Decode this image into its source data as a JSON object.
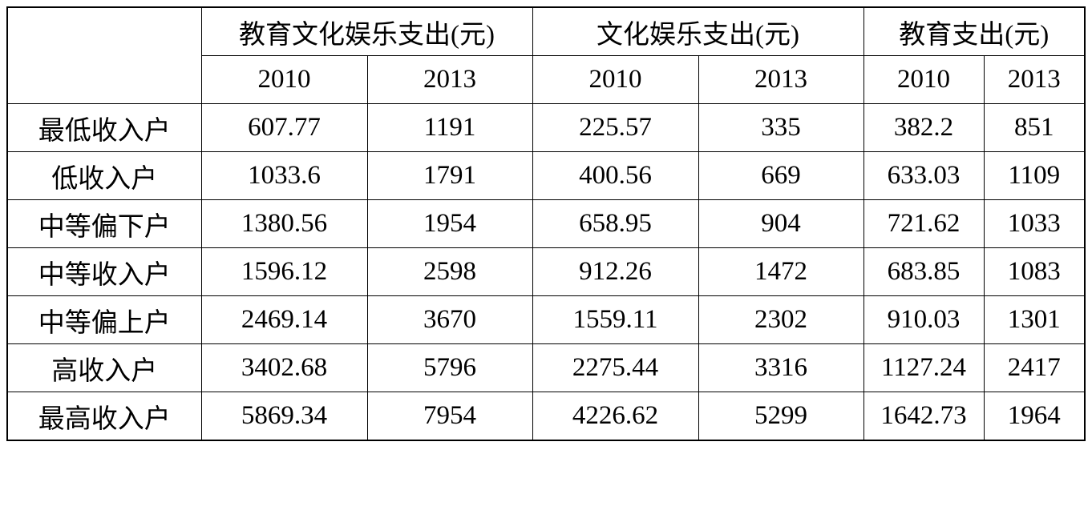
{
  "header": {
    "corner": "",
    "groups": [
      "教育文化娱乐支出(元)",
      "文化娱乐支出(元)",
      "教育支出(元)"
    ],
    "years": [
      2010,
      2013,
      2010,
      2013,
      2010,
      2013
    ]
  },
  "table": {
    "rows": [
      {
        "label": "最低收入户",
        "cells": [
          607.77,
          1191,
          225.57,
          335,
          382.2,
          851
        ]
      },
      {
        "label": "低收入户",
        "cells": [
          1033.6,
          1791,
          400.56,
          669,
          633.03,
          1109
        ]
      },
      {
        "label": "中等偏下户",
        "cells": [
          1380.56,
          1954,
          658.95,
          904,
          721.62,
          1033
        ]
      },
      {
        "label": "中等收入户",
        "cells": [
          1596.12,
          2598,
          912.26,
          1472,
          683.85,
          1083
        ]
      },
      {
        "label": "中等偏上户",
        "cells": [
          2469.14,
          3670,
          1559.11,
          2302,
          910.03,
          1301
        ]
      },
      {
        "label": "高收入户",
        "cells": [
          3402.68,
          5796,
          2275.44,
          3316,
          1127.24,
          2417
        ]
      },
      {
        "label": "最高收入户",
        "cells": [
          5869.34,
          7954,
          4226.62,
          5299,
          1642.73,
          1964
        ]
      }
    ]
  }
}
